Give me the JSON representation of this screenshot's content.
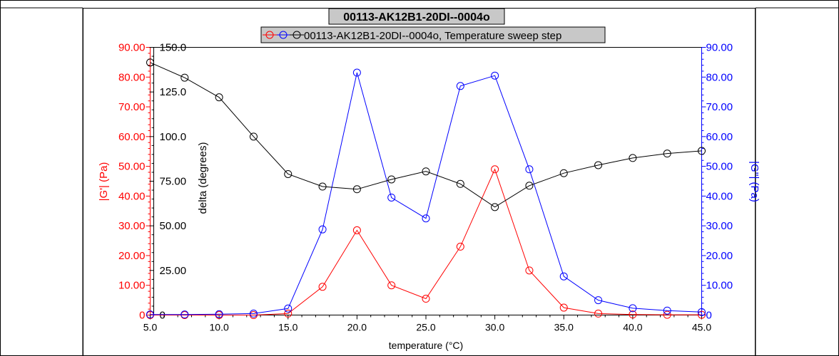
{
  "chart_data": {
    "type": "line",
    "title": "00113-AK12B1-20DI--0004o",
    "legend": {
      "label": "00113-AK12B1-20DI--0004o, Temperature sweep step",
      "placement": "top-center"
    },
    "xlabel": "temperature (°C)",
    "xlim": [
      5.0,
      45.0
    ],
    "x_ticks": [
      "5.0",
      "10.0",
      "15.0",
      "20.0",
      "25.0",
      "30.0",
      "35.0",
      "40.0",
      "45.0"
    ],
    "x": [
      5.0,
      7.5,
      10.0,
      12.5,
      15.0,
      17.5,
      20.0,
      22.5,
      25.0,
      27.5,
      30.0,
      32.5,
      35.0,
      37.5,
      40.0,
      42.5,
      45.0
    ],
    "grid": false,
    "axes": {
      "g1": {
        "label": "|G'| (Pa)",
        "position": "left-outer",
        "color": "#ff0000",
        "ylim": [
          0,
          90
        ],
        "ticks": [
          "0",
          "10.00",
          "20.00",
          "30.00",
          "40.00",
          "50.00",
          "60.00",
          "70.00",
          "80.00",
          "90.00"
        ]
      },
      "delta": {
        "label": "delta (degrees)",
        "position": "left-inner",
        "color": "#000000",
        "ylim": [
          0,
          150
        ],
        "ticks": [
          "0",
          "25.00",
          "50.00",
          "75.00",
          "100.0",
          "125.0",
          "150.0"
        ]
      },
      "g2": {
        "label": "|G''| (Pa)",
        "position": "right",
        "color": "#0000ff",
        "ylim": [
          0,
          90
        ],
        "ticks": [
          "0",
          "10.00",
          "20.00",
          "30.00",
          "40.00",
          "50.00",
          "60.00",
          "70.00",
          "80.00",
          "90.00"
        ]
      }
    },
    "series": [
      {
        "axis": "g1",
        "color": "#ff0000",
        "values": [
          0,
          0,
          0,
          0,
          0.5,
          9.5,
          28.5,
          10,
          5.5,
          23,
          49,
          15,
          2.5,
          0.5,
          0.2,
          0.1,
          0.1
        ]
      },
      {
        "axis": "g2",
        "color": "#0000ff",
        "values": [
          0.2,
          0.2,
          0.3,
          0.5,
          2.2,
          28.8,
          81.5,
          39.5,
          32.5,
          77,
          80.5,
          49,
          13,
          5,
          2.3,
          1.5,
          1
        ]
      },
      {
        "axis": "delta",
        "color": "#000000",
        "values": [
          141.5,
          133,
          122,
          100,
          79,
          72,
          70.5,
          76,
          80.5,
          73.5,
          60.5,
          72.5,
          79.5,
          84,
          88,
          90.5,
          92
        ]
      }
    ]
  }
}
